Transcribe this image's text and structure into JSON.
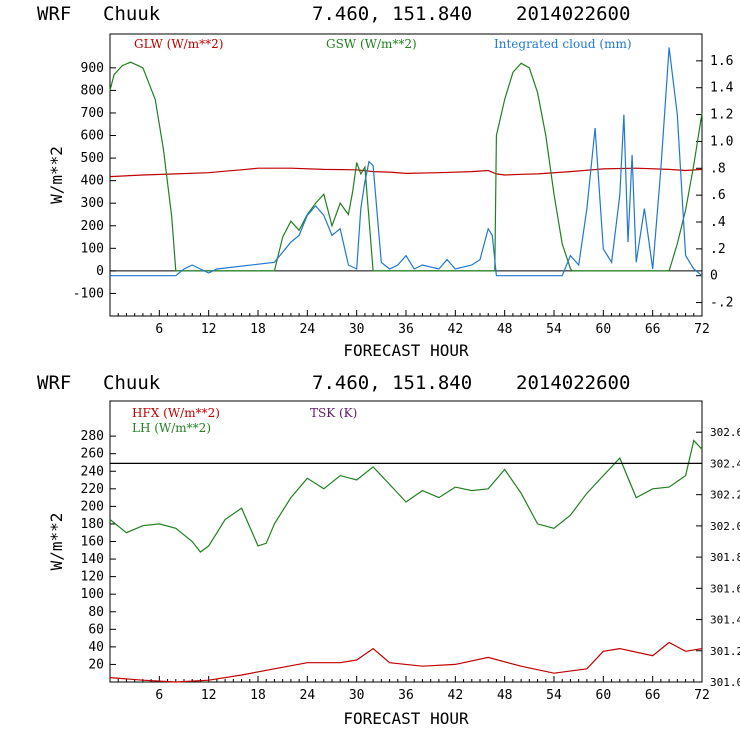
{
  "chart_data": [
    {
      "type": "line",
      "header": {
        "model": "WRF",
        "station": "Chuuk",
        "coords": "7.460, 151.840",
        "date": "2014022600"
      },
      "xlabel": "FORECAST HOUR",
      "ylabel": "W/m**2",
      "xlim": [
        0,
        72
      ],
      "ylim": [
        -200,
        1050
      ],
      "y2lim": [
        -0.3,
        1.8
      ],
      "x_ticks": [
        6,
        12,
        18,
        24,
        30,
        36,
        42,
        48,
        54,
        60,
        66,
        72
      ],
      "y_ticks": [
        -100,
        0,
        100,
        200,
        300,
        400,
        500,
        600,
        700,
        800,
        900
      ],
      "y2_ticks": [
        "-.2",
        "0",
        ".2",
        ".4",
        ".6",
        ".8",
        "1.0",
        "1.2",
        "1.4",
        "1.6"
      ],
      "series": [
        {
          "name": "GLW (W/m**2)",
          "color": "#c00000",
          "axis": "left",
          "x": [
            0,
            4,
            8,
            12,
            14,
            16,
            18,
            22,
            26,
            30,
            32,
            34,
            36,
            40,
            44,
            46,
            47,
            48,
            50,
            52,
            56,
            60,
            64,
            68,
            70,
            72
          ],
          "y": [
            418,
            425,
            430,
            435,
            442,
            448,
            455,
            455,
            450,
            448,
            440,
            438,
            432,
            435,
            440,
            445,
            430,
            425,
            428,
            430,
            440,
            452,
            455,
            450,
            445,
            450
          ]
        },
        {
          "name": "GSW (W/m**2)",
          "color": "#208020",
          "axis": "left",
          "x": [
            0,
            0.5,
            1.5,
            2.5,
            4,
            5.5,
            6.5,
            7.5,
            8,
            20,
            21,
            22,
            23,
            24,
            25,
            26,
            27,
            28,
            29,
            29.5,
            30,
            30.5,
            31,
            32,
            33,
            46.8,
            47,
            48,
            49,
            50,
            51,
            52,
            53,
            54,
            55,
            56,
            56.2,
            68,
            69,
            70,
            71,
            72
          ],
          "y": [
            800,
            870,
            910,
            925,
            900,
            760,
            540,
            240,
            0,
            0,
            150,
            220,
            180,
            250,
            300,
            340,
            200,
            300,
            250,
            350,
            480,
            430,
            460,
            0,
            0,
            0,
            600,
            760,
            880,
            920,
            900,
            790,
            600,
            340,
            120,
            10,
            0,
            0,
            120,
            270,
            470,
            700
          ]
        },
        {
          "name": "Integrated cloud (mm)",
          "color": "#1f78d0",
          "axis": "right",
          "x": [
            0,
            8,
            9,
            10,
            11,
            12,
            13,
            20,
            22,
            23,
            24,
            25,
            26,
            27,
            28,
            29,
            30,
            30.5,
            31,
            31.5,
            32,
            33,
            34,
            35,
            36,
            37,
            38,
            40,
            41,
            42,
            44,
            45,
            46,
            46.5,
            47,
            55,
            56,
            57,
            58,
            59,
            60,
            61,
            62,
            62.5,
            63,
            63.5,
            64,
            65,
            66,
            67,
            68,
            69,
            70,
            71,
            72
          ],
          "y": [
            0,
            0,
            0.05,
            0.08,
            0.05,
            0.02,
            0.05,
            0.1,
            0.25,
            0.3,
            0.45,
            0.52,
            0.45,
            0.3,
            0.35,
            0.08,
            0.05,
            0.5,
            0.7,
            0.85,
            0.82,
            0.1,
            0.05,
            0.08,
            0.15,
            0.05,
            0.08,
            0.05,
            0.12,
            0.05,
            0.08,
            0.12,
            0.35,
            0.3,
            0,
            0,
            0.15,
            0.08,
            0.5,
            1.1,
            0.2,
            0.1,
            0.6,
            1.2,
            0.25,
            0.9,
            0.1,
            0.5,
            0.05,
            0.8,
            1.7,
            1.2,
            0.15,
            0.05,
            0
          ]
        }
      ]
    },
    {
      "type": "line",
      "header": {
        "model": "WRF",
        "station": "Chuuk",
        "coords": "7.460, 151.840",
        "date": "2014022600"
      },
      "xlabel": "FORECAST HOUR",
      "ylabel": "W/m**2",
      "xlim": [
        0,
        72
      ],
      "ylim": [
        0,
        320
      ],
      "y2lim": [
        301.0,
        302.8
      ],
      "x_ticks": [
        6,
        12,
        18,
        24,
        30,
        36,
        42,
        48,
        54,
        60,
        66,
        72
      ],
      "y_ticks": [
        20,
        40,
        60,
        80,
        100,
        120,
        140,
        160,
        180,
        200,
        220,
        240,
        260,
        280
      ],
      "y2_ticks": [
        "301.0",
        "301.2",
        "301.4",
        "301.6",
        "301.8",
        "302.0",
        "302.2",
        "302.4",
        "302.6"
      ],
      "series": [
        {
          "name": "HFX (W/m**2)",
          "color": "#c00000",
          "axis": "left",
          "x": [
            0,
            4,
            8,
            12,
            16,
            20,
            24,
            28,
            30,
            32,
            34,
            38,
            42,
            46,
            50,
            54,
            58,
            60,
            62,
            66,
            68,
            70,
            72
          ],
          "y": [
            5,
            2,
            0,
            2,
            8,
            15,
            22,
            22,
            25,
            38,
            22,
            18,
            20,
            28,
            18,
            10,
            15,
            35,
            38,
            30,
            45,
            35,
            38
          ]
        },
        {
          "name": "LH (W/m**2)",
          "color": "#208020",
          "axis": "left",
          "x": [
            0,
            2,
            4,
            6,
            8,
            10,
            11,
            12,
            14,
            16,
            18,
            19,
            20,
            22,
            24,
            26,
            28,
            30,
            32,
            34,
            36,
            38,
            40,
            42,
            44,
            46,
            48,
            50,
            52,
            54,
            56,
            58,
            60,
            62,
            64,
            66,
            68,
            70,
            71,
            72
          ],
          "y": [
            185,
            170,
            178,
            180,
            175,
            160,
            148,
            155,
            185,
            198,
            155,
            158,
            180,
            210,
            232,
            220,
            235,
            230,
            245,
            225,
            205,
            218,
            210,
            222,
            218,
            220,
            242,
            215,
            180,
            175,
            190,
            215,
            235,
            255,
            210,
            220,
            222,
            235,
            275,
            265
          ]
        },
        {
          "name": "TSK (K)",
          "color": "#601870",
          "axis": "right",
          "x": [
            0,
            72
          ],
          "y": [
            302.4,
            302.4
          ]
        }
      ]
    }
  ]
}
